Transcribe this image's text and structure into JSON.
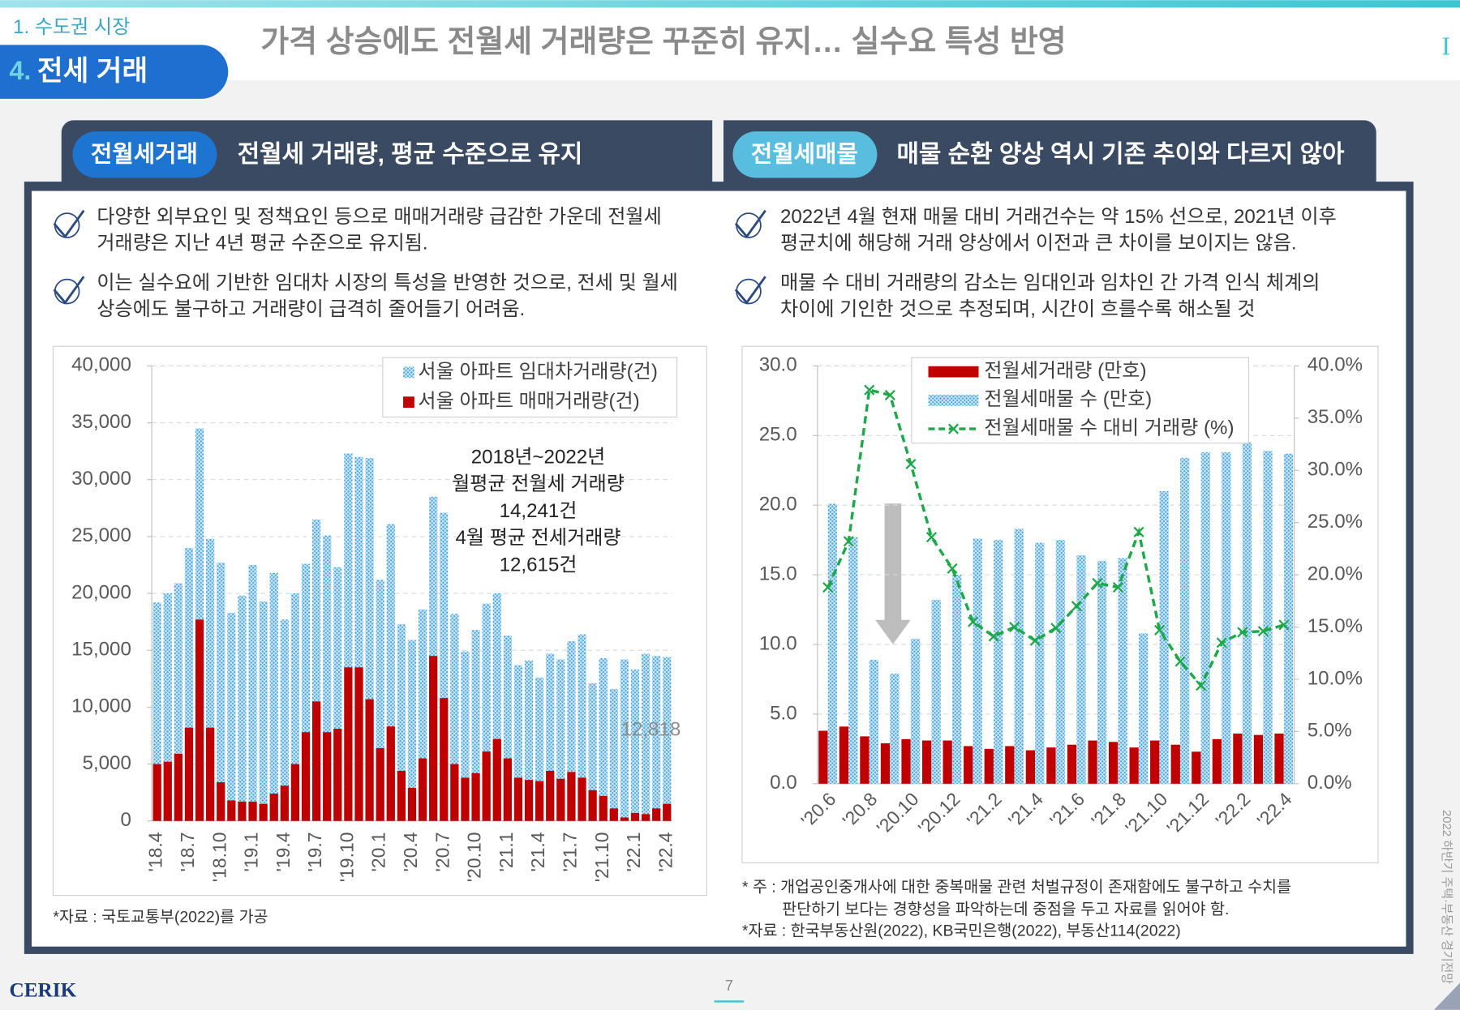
{
  "header": {
    "section": "1. 수도권 시장",
    "subsection_number": "4.",
    "subsection": "전세 거래",
    "title": "가격 상승에도 전월세 거래량은 꾸준히 유지… 실수요 특성 반영",
    "marker": "I"
  },
  "panels": [
    {
      "tag": "전월세거래",
      "heading": "전월세 거래량, 평균 수준으로 유지",
      "bullets": [
        [
          "다양한 외부요인 및 정책요인 등으로 매매거래량 급감한 가운데 전월세",
          "거래량은 지난 4년 평균 수준으로 유지됨."
        ],
        [
          "이는 실수요에 기반한 임대차 시장의 특성을 반영한 것으로, 전세 및 월세",
          "상승에도 불구하고 거래량이 급격히 줄어들기 어려움."
        ]
      ],
      "notes": [
        "*자료 : 국토교통부(2022)를 가공"
      ]
    },
    {
      "tag": "전월세매물",
      "heading": "매물 순환 양상 역시 기존 추이와 다르지 않아",
      "bullets": [
        [
          "2022년 4월 현재 매물 대비 거래건수는 약 15% 선으로, 2021년 이후",
          "평균치에 해당해 거래 양상에서 이전과 큰 차이를 보이지는 않음."
        ],
        [
          "매물 수 대비 거래량의 감소는 임대인과 임차인 간 가격 인식 체계의",
          "차이에 기인한 것으로 추정되며, 시간이 흐를수록 해소될 것"
        ]
      ],
      "notes": [
        "* 주 : 개업공인중개사에 대한 중복매물 관련 처벌규정이 존재함에도 불구하고 수치를",
        "판단하기 보다는 경향성을 파악하는데 중점을 두고 자료를 읽어야 함.",
        "*자료 : 한국부동산원(2022), KB국민은행(2022), 부동산114(2022)"
      ]
    }
  ],
  "footer": {
    "logo": "CERIK",
    "page": "7",
    "side_text": "2022 하반기 주택·부동산 경기전망"
  },
  "chart_data": [
    {
      "type": "bar",
      "barmode": "overlay",
      "grid": true,
      "categories": [
        "'18.4",
        null,
        null,
        "'18.7",
        null,
        null,
        "'18.10",
        null,
        null,
        "'19.1",
        null,
        null,
        "'19.4",
        null,
        null,
        "'19.7",
        null,
        null,
        "'19.10",
        null,
        null,
        "'20.1",
        null,
        null,
        "'20.4",
        null,
        null,
        "'20.7",
        null,
        null,
        "'20.10",
        null,
        null,
        "'21.1",
        null,
        null,
        "'21.4",
        null,
        null,
        "'21.7",
        null,
        null,
        "'21.10",
        null,
        null,
        "'22.1",
        null,
        null,
        "'22.4"
      ],
      "series": [
        {
          "name": "서울 아파트 임대차거래량(건)",
          "color": "#4ea6e0",
          "values": [
            19200,
            20000,
            20900,
            24000,
            34500,
            24800,
            22700,
            18300,
            19800,
            22500,
            19300,
            21800,
            17700,
            20000,
            22600,
            26500,
            25100,
            22300,
            32300,
            32000,
            31900,
            21200,
            26100,
            17300,
            15900,
            18600,
            28500,
            27100,
            18200,
            14900,
            16800,
            19100,
            20000,
            16300,
            13700,
            14100,
            12600,
            14700,
            14200,
            15800,
            16400,
            12100,
            14300,
            11600,
            14200,
            13300,
            14700,
            14500,
            14400
          ]
        },
        {
          "name": "서울 아파트 매매거래량(건)",
          "color": "#c00000",
          "values": [
            5000,
            5200,
            5900,
            8200,
            17700,
            8200,
            3400,
            1800,
            1700,
            1700,
            1500,
            2400,
            3100,
            5000,
            7800,
            10500,
            7800,
            8100,
            13500,
            13500,
            10700,
            6400,
            8300,
            4400,
            2900,
            5500,
            14500,
            10800,
            5000,
            3800,
            4200,
            6100,
            7200,
            5500,
            3800,
            3600,
            3500,
            4400,
            3700,
            4300,
            3800,
            2700,
            2200,
            1100,
            300,
            700,
            600,
            1100,
            1500
          ]
        }
      ],
      "ylim": [
        0,
        40000
      ],
      "yticks": [
        0,
        {
          "value": 5000,
          "label": "5,000"
        },
        {
          "value": 10000,
          "label": "10,000"
        },
        {
          "value": 15000,
          "label": "15,000"
        },
        {
          "value": 20000,
          "label": "20,000"
        },
        {
          "value": 25000,
          "label": "25,000"
        },
        {
          "value": 30000,
          "label": "30,000"
        },
        {
          "value": 35000,
          "label": "35,000"
        },
        {
          "value": 40000,
          "label": "40,000"
        }
      ],
      "annotations": [
        "2018년~2022년",
        "월평균 전월세 거래량",
        "14,241건",
        "4월 평균 전세거래량",
        "12,615건",
        "12,818"
      ]
    },
    {
      "type": "bar",
      "barmode": "group",
      "grid": true,
      "categories": [
        "'20.6",
        null,
        "'20.8",
        null,
        "'20.10",
        null,
        "'20.12",
        null,
        "'21.2",
        null,
        "'21.4",
        null,
        "'21.6",
        null,
        "'21.8",
        null,
        "'21.10",
        null,
        "'21.12",
        null,
        "'22.2",
        null,
        "'22.4"
      ],
      "series": [
        {
          "name": "전월세거래량 (만호)",
          "color": "#c00000",
          "values": [
            3.8,
            4.1,
            3.4,
            2.9,
            3.2,
            3.1,
            3.1,
            2.7,
            2.5,
            2.7,
            2.4,
            2.6,
            2.8,
            3.1,
            3.0,
            2.6,
            3.1,
            2.8,
            2.3,
            3.2,
            3.6,
            3.5,
            3.6
          ]
        },
        {
          "name": "전월세매물 수 (만호)",
          "color": "#4ea6e0",
          "values": [
            20.1,
            17.7,
            8.9,
            7.9,
            10.4,
            13.2,
            15.0,
            17.6,
            17.5,
            18.3,
            17.3,
            17.5,
            16.4,
            16.0,
            16.2,
            10.8,
            21.0,
            23.4,
            23.8,
            23.8,
            24.5,
            23.9,
            23.7
          ]
        },
        {
          "name": "전월세매물 수 대비 거래량 (%)",
          "color": "#1ea84a",
          "type": "line",
          "axis": "y2",
          "values": [
            18.8,
            23.2,
            37.7,
            37.2,
            30.6,
            23.6,
            20.6,
            15.5,
            14.1,
            15.0,
            13.7,
            14.9,
            17.0,
            19.2,
            18.8,
            24.1,
            14.7,
            11.7,
            9.4,
            13.5,
            14.5,
            14.6,
            15.2
          ]
        }
      ],
      "ylim": [
        0,
        30
      ],
      "yticks": [
        {
          "value": 0,
          "label": "0.0"
        },
        {
          "value": 5,
          "label": "5.0"
        },
        {
          "value": 10,
          "label": "10.0"
        },
        {
          "value": 15,
          "label": "15.0"
        },
        {
          "value": 20,
          "label": "20.0"
        },
        {
          "value": 25,
          "label": "25.0"
        },
        {
          "value": 30,
          "label": "30.0"
        }
      ],
      "y2lim": [
        0,
        40
      ],
      "y2ticks": [
        {
          "value": 0,
          "label": "0.0%"
        },
        {
          "value": 5,
          "label": "5.0%"
        },
        {
          "value": 10,
          "label": "10.0%"
        },
        {
          "value": 15,
          "label": "15.0%"
        },
        {
          "value": 20,
          "label": "20.0%"
        },
        {
          "value": 25,
          "label": "25.0%"
        },
        {
          "value": 30,
          "label": "30.0%"
        },
        {
          "value": 35,
          "label": "35.0%"
        },
        {
          "value": 40,
          "label": "40.0%"
        }
      ]
    }
  ]
}
